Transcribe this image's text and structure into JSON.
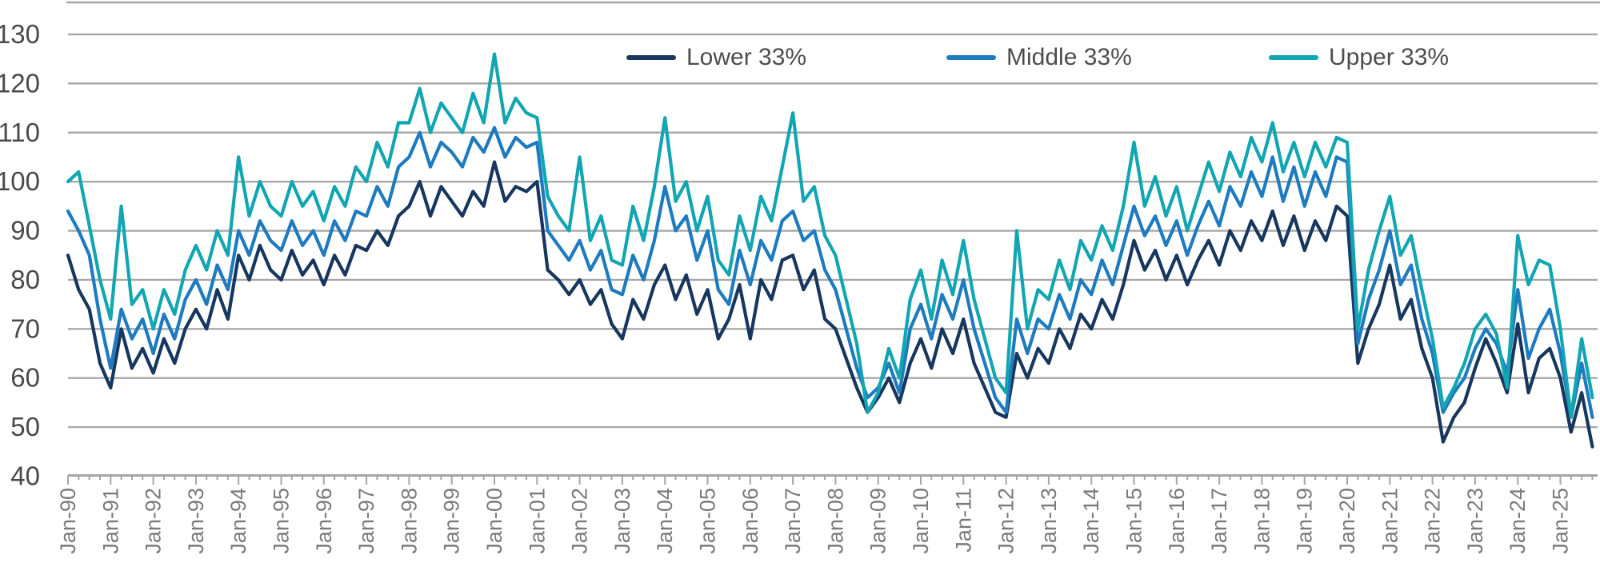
{
  "chart_data": {
    "type": "line",
    "title": "",
    "x_start_year": 1990,
    "x_step_years": 0.25,
    "x_tick_labels": [
      "Jan-90",
      "Jan-91",
      "Jan-92",
      "Jan-93",
      "Jan-94",
      "Jan-95",
      "Jan-96",
      "Jan-97",
      "Jan-98",
      "Jan-99",
      "Jan-00",
      "Jan-01",
      "Jan-02",
      "Jan-03",
      "Jan-04",
      "Jan-05",
      "Jan-06",
      "Jan-07",
      "Jan-08",
      "Jan-09",
      "Jan-10",
      "Jan-11",
      "Jan-12",
      "Jan-13",
      "Jan-14",
      "Jan-15",
      "Jan-16",
      "Jan-17",
      "Jan-18",
      "Jan-19",
      "Jan-20",
      "Jan-21",
      "Jan-22",
      "Jan-23",
      "Jan-24",
      "Jan-25"
    ],
    "ylim": [
      40,
      130
    ],
    "y_tick_labels": [
      130,
      120,
      110,
      100,
      90,
      80,
      70,
      60,
      50,
      40
    ],
    "grid": true,
    "legend_position": "top-center",
    "series": [
      {
        "name": "Lower 33%",
        "color": "#17375E",
        "values": [
          85,
          78,
          74,
          63,
          58,
          70,
          62,
          66,
          61,
          68,
          63,
          70,
          74,
          70,
          78,
          72,
          85,
          80,
          87,
          82,
          80,
          86,
          81,
          84,
          79,
          85,
          81,
          87,
          86,
          90,
          87,
          93,
          95,
          100,
          93,
          99,
          96,
          93,
          98,
          95,
          104,
          96,
          99,
          98,
          100,
          82,
          80,
          77,
          80,
          75,
          78,
          71,
          68,
          76,
          72,
          79,
          83,
          76,
          81,
          73,
          78,
          68,
          72,
          79,
          68,
          80,
          76,
          84,
          85,
          78,
          82,
          72,
          70,
          64,
          58,
          53,
          56,
          60,
          55,
          63,
          68,
          62,
          70,
          65,
          72,
          63,
          58,
          53,
          52,
          65,
          60,
          66,
          63,
          70,
          66,
          73,
          70,
          76,
          72,
          79,
          88,
          82,
          86,
          80,
          85,
          79,
          84,
          88,
          83,
          90,
          86,
          92,
          88,
          94,
          87,
          93,
          86,
          92,
          88,
          95,
          93,
          63,
          70,
          75,
          83,
          72,
          76,
          66,
          60,
          47,
          52,
          55,
          62,
          68,
          63,
          57,
          71,
          57,
          64,
          66,
          60,
          49,
          57,
          46
        ]
      },
      {
        "name": "Middle 33%",
        "color": "#1E7BC0",
        "values": [
          94,
          90,
          85,
          72,
          62,
          74,
          68,
          72,
          65,
          73,
          68,
          76,
          80,
          75,
          83,
          78,
          90,
          85,
          92,
          88,
          86,
          92,
          87,
          90,
          85,
          92,
          88,
          94,
          93,
          99,
          95,
          103,
          105,
          110,
          103,
          108,
          106,
          103,
          109,
          106,
          111,
          105,
          109,
          107,
          108,
          90,
          87,
          84,
          88,
          82,
          86,
          78,
          77,
          85,
          80,
          88,
          99,
          90,
          93,
          84,
          90,
          78,
          75,
          86,
          79,
          88,
          84,
          92,
          94,
          88,
          90,
          82,
          78,
          70,
          62,
          56,
          58,
          63,
          57,
          70,
          75,
          68,
          77,
          72,
          80,
          70,
          63,
          56,
          53,
          72,
          65,
          72,
          70,
          77,
          72,
          80,
          77,
          84,
          79,
          87,
          95,
          89,
          93,
          87,
          92,
          85,
          91,
          96,
          91,
          99,
          95,
          102,
          97,
          105,
          96,
          103,
          95,
          102,
          97,
          105,
          104,
          67,
          76,
          82,
          90,
          79,
          83,
          72,
          65,
          53,
          57,
          60,
          66,
          70,
          67,
          61,
          78,
          64,
          70,
          74,
          65,
          52,
          63,
          52
        ]
      },
      {
        "name": "Upper 33%",
        "color": "#12A6B2",
        "values": [
          100,
          102,
          91,
          80,
          72,
          95,
          75,
          78,
          70,
          78,
          73,
          82,
          87,
          82,
          90,
          85,
          105,
          93,
          100,
          95,
          93,
          100,
          95,
          98,
          92,
          99,
          95,
          103,
          100,
          108,
          103,
          112,
          112,
          119,
          110,
          116,
          113,
          110,
          118,
          112,
          126,
          112,
          117,
          114,
          113,
          97,
          93,
          90,
          105,
          88,
          93,
          84,
          83,
          95,
          88,
          99,
          113,
          96,
          100,
          90,
          97,
          84,
          81,
          93,
          86,
          97,
          92,
          103,
          114,
          96,
          99,
          89,
          85,
          76,
          67,
          53,
          57,
          66,
          60,
          76,
          82,
          72,
          84,
          77,
          88,
          76,
          68,
          60,
          57,
          90,
          70,
          78,
          76,
          84,
          78,
          88,
          84,
          91,
          86,
          95,
          108,
          95,
          101,
          93,
          99,
          90,
          97,
          104,
          98,
          106,
          101,
          109,
          104,
          112,
          102,
          108,
          101,
          108,
          103,
          109,
          108,
          70,
          82,
          90,
          97,
          85,
          89,
          78,
          68,
          54,
          58,
          63,
          70,
          73,
          69,
          58,
          89,
          79,
          84,
          83,
          70,
          52,
          68,
          56
        ]
      }
    ]
  },
  "styles": {
    "background": "#FFFFFF",
    "grid_color": "#A9A9A9",
    "axis_color": "#A6A6A6",
    "tick_color": "#A6A6A6",
    "y_label_color": "#4A4A4A",
    "x_label_color": "#7A7A7A",
    "legend_text_color": "#4D4D4D"
  }
}
